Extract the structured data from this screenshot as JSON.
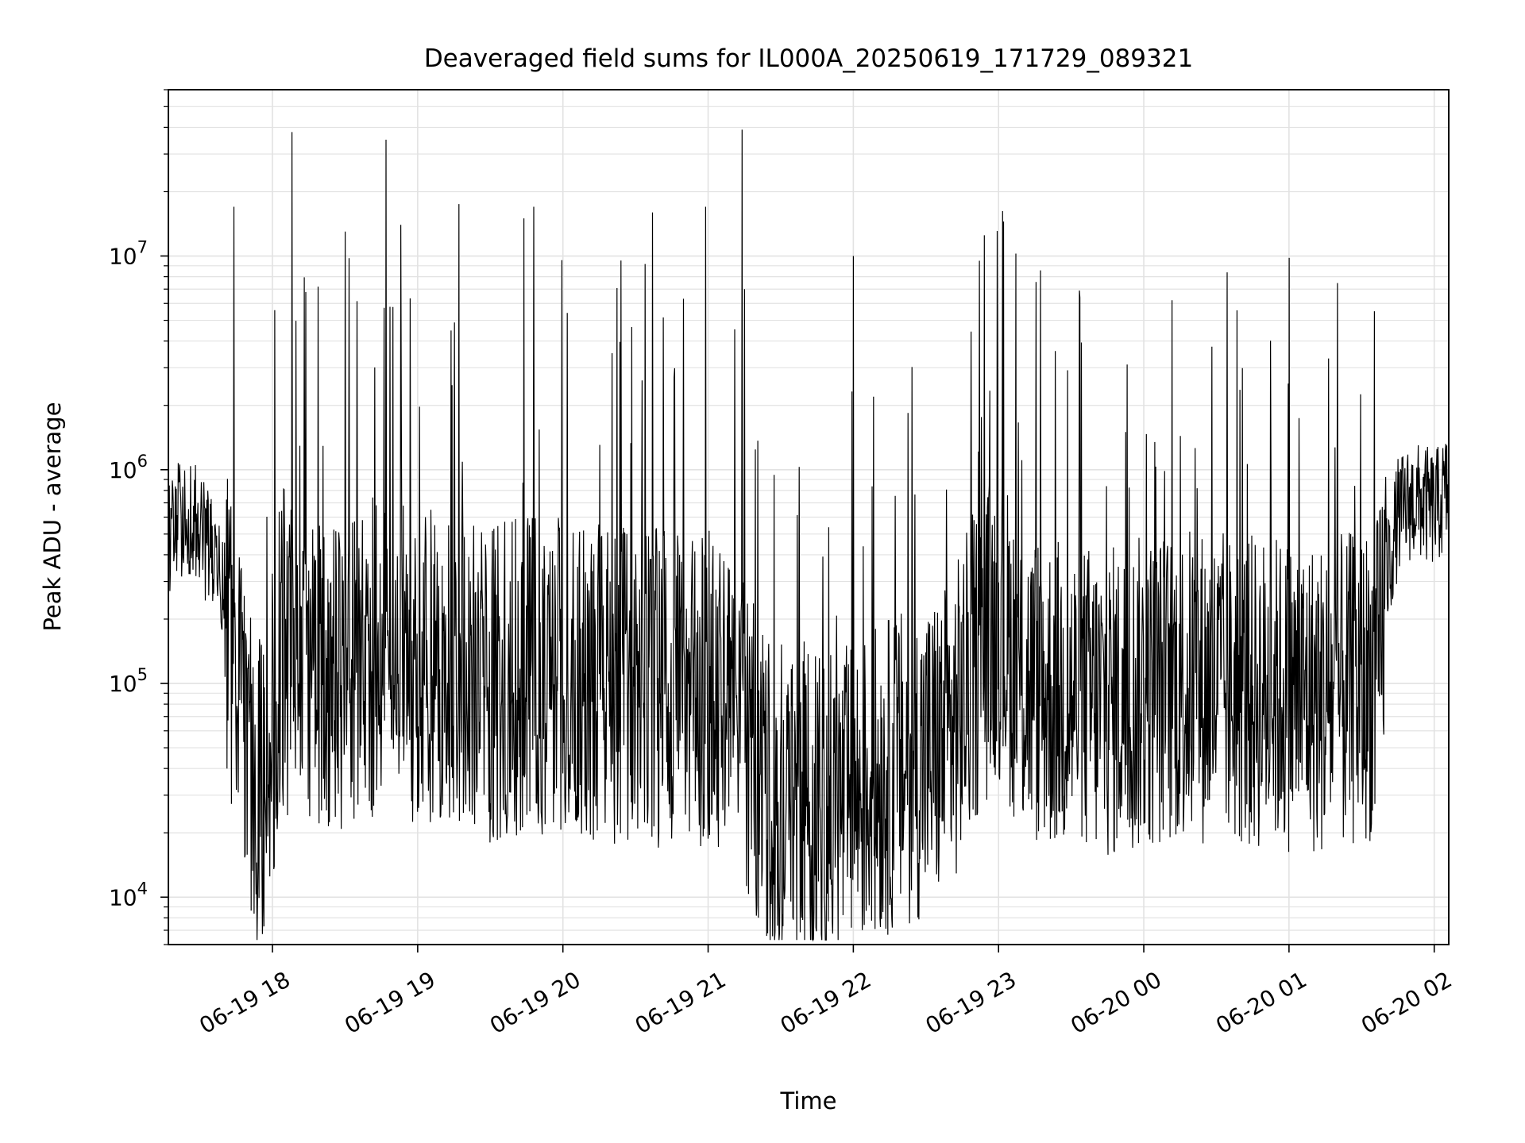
{
  "chart_data": {
    "type": "line",
    "title": "Deaveraged field sums for IL000A_20250619_171729_089321",
    "xlabel": "Time",
    "ylabel": "Peak ADU - average",
    "yscale": "log",
    "ylim": [
      6000,
      60000000
    ],
    "xlim": [
      "06-19 17:17",
      "06-20 02:06"
    ],
    "x_ticks": [
      "06-19 18",
      "06-19 19",
      "06-19 20",
      "06-19 21",
      "06-19 22",
      "06-19 23",
      "06-20 00",
      "06-20 01",
      "06-20 02"
    ],
    "y_ticks": [
      {
        "base": "10",
        "exp": "4"
      },
      {
        "base": "10",
        "exp": "5"
      },
      {
        "base": "10",
        "exp": "6"
      },
      {
        "base": "10",
        "exp": "7"
      }
    ],
    "grid": true,
    "line_color": "#000000",
    "series": [
      {
        "x": [
          "06-19 17:17",
          "06-19 17:23",
          "06-19 17:29",
          "06-19 17:35",
          "06-19 17:40",
          "06-19 17:44",
          "06-19 17:48",
          "06-19 17:52",
          "06-19 17:56",
          "06-19 18:00",
          "06-19 18:04",
          "06-19 18:07",
          "06-19 18:11",
          "06-19 18:15",
          "06-19 18:20",
          "06-19 18:25",
          "06-19 18:30",
          "06-19 18:35",
          "06-19 18:40",
          "06-19 18:45",
          "06-19 18:50",
          "06-19 18:55",
          "06-19 19:00",
          "06-19 19:10",
          "06-19 19:20",
          "06-19 19:30",
          "06-19 19:40",
          "06-19 19:50",
          "06-19 20:00",
          "06-19 20:10",
          "06-19 20:20",
          "06-19 20:30",
          "06-19 20:40",
          "06-19 20:50",
          "06-19 21:00",
          "06-19 21:10",
          "06-19 21:20",
          "06-19 21:30",
          "06-19 21:40",
          "06-19 21:50",
          "06-19 22:00",
          "06-19 22:10",
          "06-19 22:20",
          "06-19 22:30",
          "06-19 22:40",
          "06-19 22:50",
          "06-19 23:00",
          "06-19 23:10",
          "06-19 23:20",
          "06-19 23:30",
          "06-19 23:45",
          "06-20 00:00",
          "06-20 00:15",
          "06-20 00:30",
          "06-20 00:45",
          "06-20 01:00",
          "06-20 01:15",
          "06-20 01:30",
          "06-20 01:37",
          "06-20 01:40",
          "06-20 01:45",
          "06-20 01:50",
          "06-20 01:55",
          "06-20 02:00",
          "06-20 02:06"
        ],
        "y": [
          500000,
          600000,
          550000,
          400000,
          250000,
          120000,
          60000,
          35000,
          30000,
          60000,
          150000,
          130000,
          120000,
          110000,
          100000,
          100000,
          110000,
          120000,
          130000,
          140000,
          135000,
          125000,
          120000,
          115000,
          110000,
          100000,
          105000,
          110000,
          110000,
          105000,
          100000,
          100000,
          95000,
          90000,
          95000,
          80000,
          40000,
          30000,
          28000,
          25000,
          28000,
          35000,
          40000,
          45000,
          55000,
          120000,
          200000,
          100000,
          90000,
          85000,
          80000,
          90000,
          100000,
          95000,
          90000,
          90000,
          85000,
          95000,
          110000,
          300000,
          600000,
          700000,
          700000,
          650000,
          800000
        ]
      }
    ],
    "spikes": [
      {
        "x": "06-19 17:44",
        "y": 17000000
      },
      {
        "x": "06-19 18:08",
        "y": 38000000
      },
      {
        "x": "06-19 18:30",
        "y": 13000000
      },
      {
        "x": "06-19 18:47",
        "y": 35000000
      },
      {
        "x": "06-19 18:53",
        "y": 14000000
      },
      {
        "x": "06-19 19:17",
        "y": 17500000
      },
      {
        "x": "06-19 19:44",
        "y": 15000000
      },
      {
        "x": "06-19 19:48",
        "y": 17000000
      },
      {
        "x": "06-19 20:37",
        "y": 16000000
      },
      {
        "x": "06-19 20:59",
        "y": 17000000
      },
      {
        "x": "06-19 21:14",
        "y": 39000000
      },
      {
        "x": "06-19 21:15",
        "y": 7000000
      },
      {
        "x": "06-19 22:00",
        "y": 10000000
      },
      {
        "x": "06-19 22:52",
        "y": 9500000
      },
      {
        "x": "06-19 23:02",
        "y": 14500000
      },
      {
        "x": "06-20 01:00",
        "y": 9800000
      }
    ]
  }
}
